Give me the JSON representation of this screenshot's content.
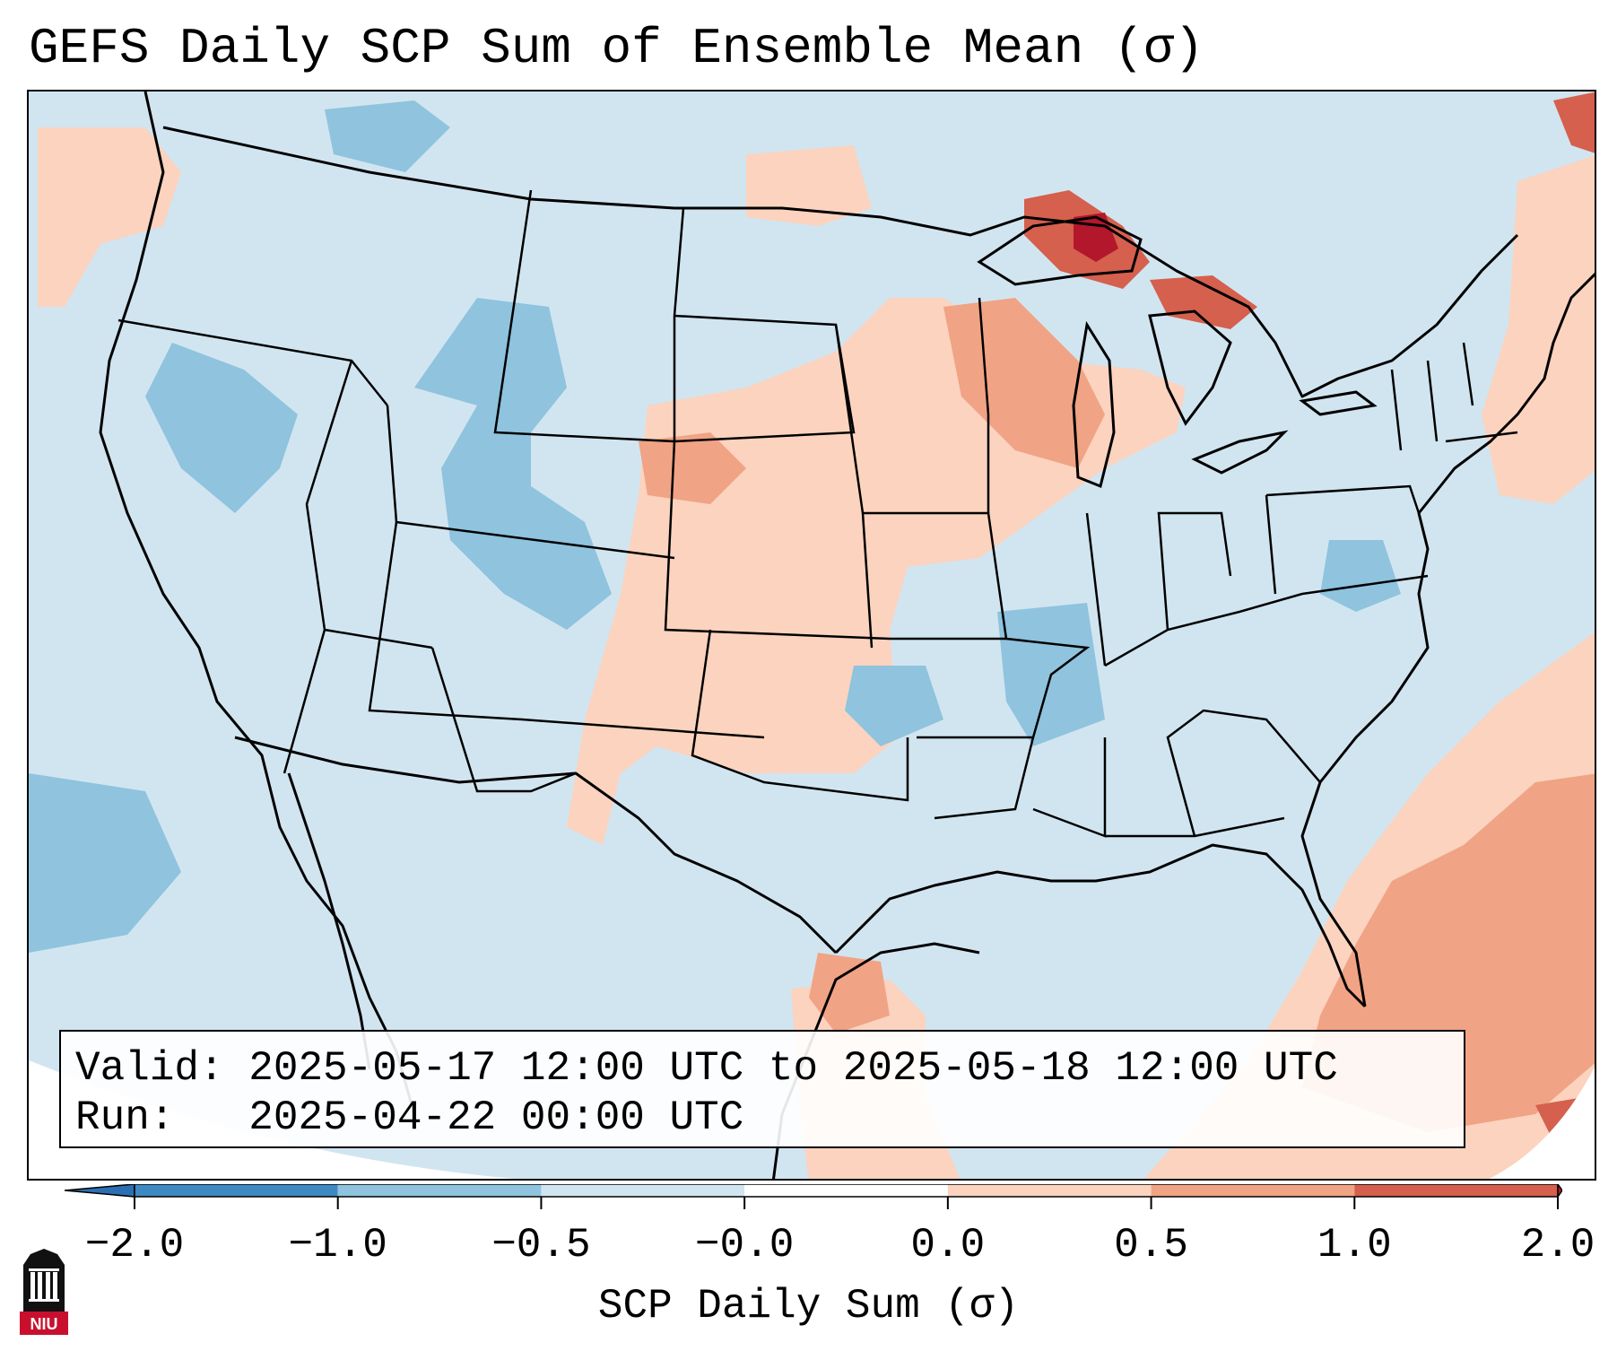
{
  "title": "GEFS Daily SCP Sum of Ensemble Mean (σ)",
  "info": {
    "valid_line": "Valid: 2025-05-17 12:00 UTC to 2025-05-18 12:00 UTC",
    "run_line": "Run:   2025-04-22 00:00 UTC"
  },
  "colorbar": {
    "label": "SCP Daily Sum (σ)",
    "ticks": [
      "−2.0",
      "−1.0",
      "−0.5",
      "−0.0",
      "0.0",
      "0.5",
      "1.0",
      "2.0"
    ],
    "bins": [
      {
        "color": "#3f89c3"
      },
      {
        "color": "#8fc3de"
      },
      {
        "color": "#d1e5f0"
      },
      {
        "color": "#ffffff"
      },
      {
        "color": "#fbd3bf"
      },
      {
        "color": "#f1a385"
      },
      {
        "color": "#d5604d"
      }
    ],
    "under_color": "#2b6fb3",
    "over_color": "#b3172b"
  },
  "logo": {
    "text": "NIU",
    "color": "#c8102e"
  },
  "map": {
    "background_color": "#d1e5f0",
    "region": "Continental United States",
    "features": [
      "state boundaries",
      "coastlines",
      "Great Lakes"
    ],
    "anomaly_areas": [
      {
        "name": "Lake Superior / Upper Michigan",
        "level": "above 1.0"
      },
      {
        "name": "Upper Midwest and Central Plains",
        "level": "0.0 to 0.5"
      },
      {
        "name": "Western Atlantic",
        "level": "0.5 to 1.0"
      },
      {
        "name": "Colorado / Utah",
        "level": "-1.0 to -0.5"
      },
      {
        "name": "Eastern Pacific",
        "level": "-1.0 to -0.5"
      }
    ]
  }
}
